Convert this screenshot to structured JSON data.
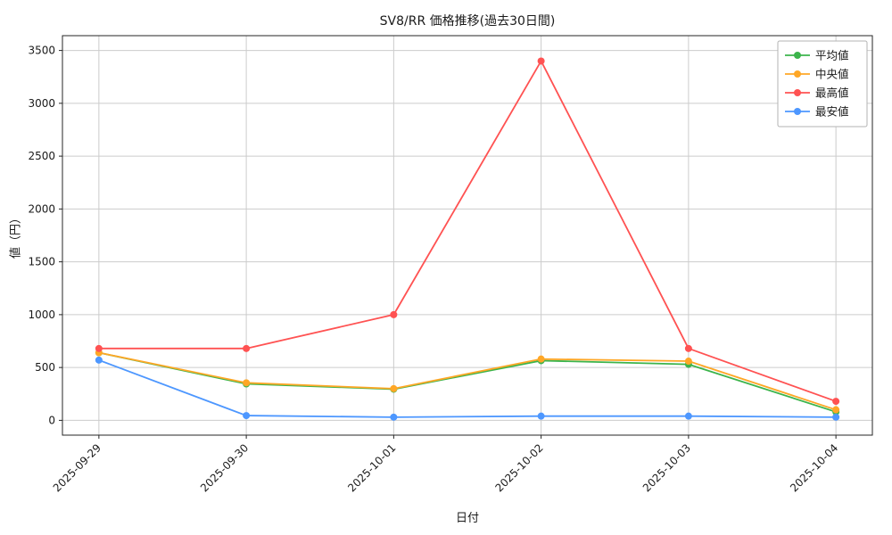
{
  "chart_data": {
    "type": "line",
    "title": "SV8/RR 価格推移(過去30日間)",
    "xlabel": "日付",
    "ylabel": "値（円）",
    "categories": [
      "2025-09-29",
      "2025-09-30",
      "2025-10-01",
      "2025-10-02",
      "2025-10-03",
      "2025-10-04"
    ],
    "series": [
      {
        "key": "average",
        "name": "平均値",
        "color": "#3cb44b",
        "values": [
          640,
          345,
          295,
          565,
          530,
          80
        ]
      },
      {
        "key": "median",
        "name": "中央値",
        "color": "#ffa726",
        "values": [
          640,
          355,
          300,
          580,
          560,
          100
        ]
      },
      {
        "key": "max",
        "name": "最高値",
        "color": "#ff5252",
        "values": [
          680,
          680,
          1000,
          3400,
          680,
          180
        ]
      },
      {
        "key": "min",
        "name": "最安値",
        "color": "#4d97ff",
        "values": [
          570,
          45,
          30,
          40,
          40,
          30
        ]
      }
    ],
    "ylim": [
      0,
      3500
    ],
    "yticks": [
      0,
      500,
      1000,
      1500,
      2000,
      2500,
      3000,
      3500
    ],
    "grid": true,
    "grid_color": "#cccccc",
    "legend_position": "upper right"
  }
}
